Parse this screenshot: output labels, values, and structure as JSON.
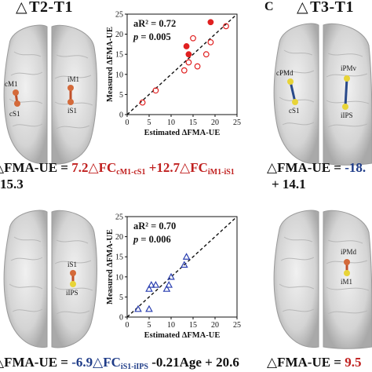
{
  "panel_a": {
    "header": "T2-T1",
    "left_labels": {
      "a": "cM1",
      "b": "cS1",
      "c": "iM1",
      "d": "iS1"
    },
    "stat_r2_label": "aR",
    "stat_r2_value": "= 0.72",
    "stat_p_label": "p",
    "stat_p_value": "= 0.005",
    "formula_prefix": "FMA-UE = ",
    "formula_term1": "7.2",
    "formula_fc1": "FC",
    "formula_fc1_sub": "cM1-cS1",
    "formula_term2": " +12.7",
    "formula_fc2": "FC",
    "formula_fc2_sub": "iM1-iS1",
    "formula_cont": "15.3"
  },
  "panel_b": {
    "labels": {
      "a": "iS1",
      "b": "iIPS"
    },
    "stat_r2_label": "aR",
    "stat_r2_value": "= 0.70",
    "stat_p_label": "p",
    "stat_p_value": "= 0.006",
    "formula_prefix": "FMA-UE = ",
    "formula_term1": "-6.9",
    "formula_fc1": "FC",
    "formula_fc1_sub": "iS1-iIPS",
    "formula_rest": " -0.21Age + 20.6"
  },
  "panel_c": {
    "letter": "C",
    "header": "T3-T1",
    "labels": {
      "a": "cPMd",
      "b": "cS1",
      "c": "iPMv",
      "d": "iIPS"
    },
    "formula_prefix": "FMA-UE = ",
    "formula_term1": "-18.",
    "formula_cont": "+ 14.1"
  },
  "panel_d": {
    "labels": {
      "a": "iPMd",
      "b": "iM1"
    },
    "formula_prefix": "FMA-UE = ",
    "formula_term1": "9.5"
  },
  "chart_data": [
    {
      "type": "scatter",
      "xlabel": "Estimated ΔFMA-UE",
      "ylabel": "Measured ΔFMA-UE",
      "xlim": [
        0,
        25
      ],
      "ylim": [
        0,
        25
      ],
      "xticks": [
        "0",
        "5",
        "10",
        "15",
        "20",
        "25"
      ],
      "yticks": [
        "0",
        "5",
        "10",
        "15",
        "20",
        "25"
      ],
      "marker": "circle",
      "color": "#e02020",
      "series": [
        {
          "values_open": [
            [
              3.5,
              3
            ],
            [
              6.5,
              6
            ],
            [
              13,
              11
            ],
            [
              14,
              13
            ],
            [
              15,
              19
            ],
            [
              16,
              12
            ],
            [
              18,
              15
            ],
            [
              19,
              18
            ],
            [
              22.5,
              22
            ]
          ],
          "values_filled": [
            [
              14,
              15
            ],
            [
              13.5,
              17
            ],
            [
              19,
              23
            ]
          ]
        }
      ]
    },
    {
      "type": "scatter",
      "xlabel": "Estimated ΔFMA-UE",
      "ylabel": "Measured ΔFMA-UE",
      "xlim": [
        0,
        25
      ],
      "ylim": [
        0,
        25
      ],
      "xticks": [
        "0",
        "5",
        "10",
        "15",
        "20",
        "25"
      ],
      "yticks": [
        "0",
        "5",
        "10",
        "15",
        "20",
        "25"
      ],
      "marker": "triangle",
      "color": "#2a3fb0",
      "series": [
        {
          "values_open": [
            [
              2.5,
              2
            ],
            [
              5,
              2
            ],
            [
              5,
              7
            ],
            [
              5.5,
              8
            ],
            [
              6.5,
              8
            ],
            [
              9,
              7
            ],
            [
              9.5,
              8
            ],
            [
              10,
              10
            ],
            [
              13,
              13
            ],
            [
              13.5,
              15
            ]
          ]
        }
      ]
    }
  ]
}
